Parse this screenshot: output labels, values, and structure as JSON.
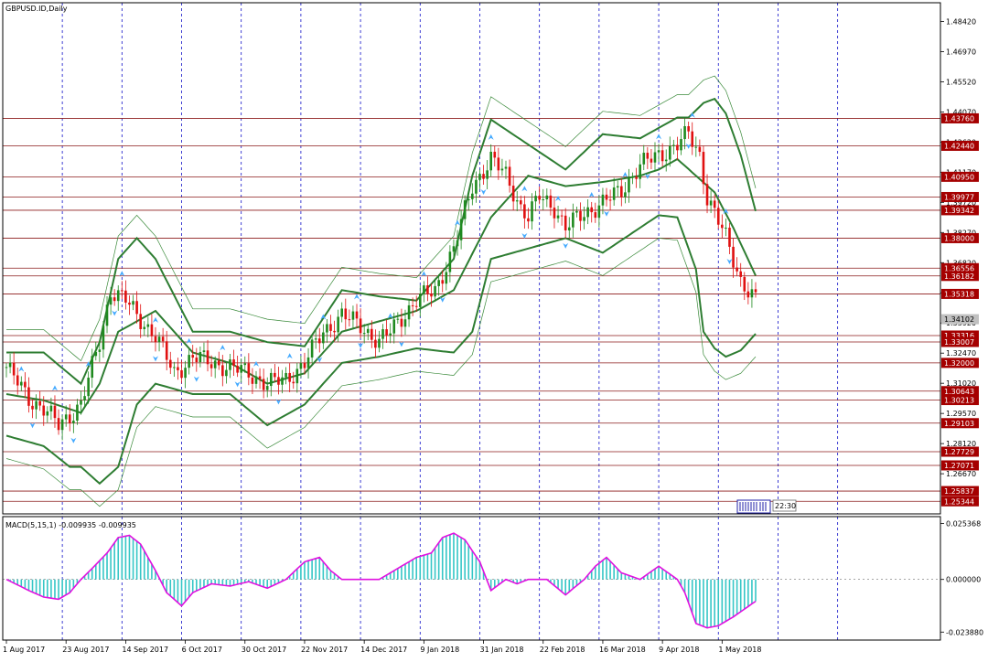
{
  "window": {
    "symbol_label": "GBPUSD.ID,Daily",
    "macd_label": "MACD(5,15,1) -0.009935 -0.009935",
    "clock": "22:30"
  },
  "colors": {
    "frame": "#000000",
    "vgrid": "#1010c8",
    "level_line": "#8b1a1a",
    "level_tag_bg": "#a50000",
    "level_tag_text": "#ffffff",
    "up_candle": "#1f8a1f",
    "down_candle": "#e01010",
    "band_main": "#2e7d32",
    "band_outer": "#3a8a3a",
    "fractal": "#44aaff",
    "macd_hist": "#35c6c6",
    "macd_signal": "#e010e0",
    "zero_line": "#707070"
  },
  "chart_data": [
    {
      "type": "line",
      "title": "GBPUSD.ID,Daily",
      "x_labels": [
        "1 Aug 2017",
        "23 Aug 2017",
        "14 Sep 2017",
        "6 Oct 2017",
        "30 Oct 2017",
        "22 Nov 2017",
        "14 Dec 2017",
        "9 Jan 2018",
        "31 Jan 2018",
        "22 Feb 2018",
        "16 Mar 2018",
        "9 Apr 2018",
        "1 May 2018"
      ],
      "y_ticks": [
        "1.48420",
        "1.46970",
        "1.45520",
        "1.44070",
        "1.42620",
        "1.41170",
        "1.39720",
        "1.38270",
        "1.36820",
        "1.35370",
        "1.33920",
        "1.32470",
        "1.31020",
        "1.29570",
        "1.28120",
        "1.26670"
      ],
      "ylim": [
        1.2474,
        1.4932
      ],
      "levels": [
        "1.43760",
        "1.42440",
        "1.40950",
        "1.39977",
        "1.39342",
        "1.38000",
        "1.36556",
        "1.36182",
        "1.35318",
        "1.33316",
        "1.33007",
        "1.32000",
        "1.30643",
        "1.30213",
        "1.29103",
        "1.27729",
        "1.27071",
        "1.25837",
        "1.25344"
      ],
      "current_price": "1.34102",
      "close_trajectory": {
        "x": [
          0,
          6,
          10,
          14,
          17,
          20,
          25,
          28,
          32,
          35,
          40,
          45,
          50,
          55,
          60,
          65,
          70,
          75,
          80,
          85,
          90,
          95,
          100,
          103,
          106,
          110,
          115,
          120,
          125,
          130,
          134,
          138,
          140,
          143,
          147,
          150,
          155,
          160,
          165,
          170,
          175,
          180,
          183,
          186,
          188,
          193,
          197,
          199,
          201
        ],
        "y": [
          1.318,
          1.303,
          1.298,
          1.29,
          1.295,
          1.3,
          1.33,
          1.355,
          1.35,
          1.343,
          1.333,
          1.315,
          1.323,
          1.32,
          1.318,
          1.315,
          1.31,
          1.312,
          1.32,
          1.335,
          1.343,
          1.338,
          1.33,
          1.335,
          1.342,
          1.35,
          1.355,
          1.375,
          1.405,
          1.418,
          1.41,
          1.395,
          1.39,
          1.4,
          1.395,
          1.385,
          1.392,
          1.397,
          1.403,
          1.415,
          1.42,
          1.425,
          1.43,
          1.42,
          1.4,
          1.38,
          1.36,
          1.355,
          1.35
        ]
      },
      "bollinger_middle": {
        "x": [
          0,
          10,
          20,
          25,
          30,
          40,
          50,
          60,
          70,
          80,
          90,
          100,
          110,
          120,
          130,
          140,
          150,
          160,
          170,
          175,
          180,
          185,
          190,
          195,
          201
        ],
        "y": [
          1.305,
          1.302,
          1.296,
          1.31,
          1.335,
          1.345,
          1.325,
          1.32,
          1.31,
          1.315,
          1.335,
          1.34,
          1.345,
          1.355,
          1.39,
          1.41,
          1.405,
          1.407,
          1.41,
          1.413,
          1.418,
          1.41,
          1.402,
          1.385,
          1.362
        ]
      },
      "bollinger_upper": {
        "x": [
          0,
          10,
          20,
          25,
          30,
          35,
          40,
          50,
          60,
          70,
          80,
          90,
          100,
          110,
          120,
          125,
          130,
          140,
          150,
          160,
          170,
          180,
          183,
          187,
          190,
          193,
          197,
          201
        ],
        "y": [
          1.325,
          1.325,
          1.31,
          1.33,
          1.37,
          1.38,
          1.37,
          1.335,
          1.335,
          1.33,
          1.328,
          1.355,
          1.352,
          1.35,
          1.37,
          1.41,
          1.437,
          1.425,
          1.413,
          1.43,
          1.428,
          1.438,
          1.438,
          1.445,
          1.447,
          1.44,
          1.42,
          1.393
        ]
      },
      "bollinger_lower": {
        "x": [
          0,
          10,
          17,
          20,
          25,
          30,
          35,
          40,
          50,
          60,
          70,
          80,
          90,
          100,
          110,
          120,
          125,
          130,
          140,
          150,
          160,
          170,
          175,
          180,
          185,
          187,
          190,
          193,
          197,
          201
        ],
        "y": [
          1.285,
          1.28,
          1.27,
          1.27,
          1.262,
          1.27,
          1.3,
          1.31,
          1.305,
          1.305,
          1.29,
          1.3,
          1.32,
          1.323,
          1.327,
          1.325,
          1.335,
          1.37,
          1.375,
          1.38,
          1.373,
          1.385,
          1.391,
          1.39,
          1.365,
          1.335,
          1.327,
          1.323,
          1.326,
          1.334
        ]
      }
    },
    {
      "type": "bar",
      "title": "MACD(5,15,1) -0.009935 -0.009935",
      "y_ticks": [
        "0.025368",
        "0.000000",
        "-0.023880"
      ],
      "ylim": [
        -0.0275,
        0.0285
      ],
      "macd": {
        "x": [
          0,
          6,
          10,
          14,
          17,
          20,
          23,
          27,
          30,
          33,
          36,
          40,
          43,
          47,
          50,
          55,
          60,
          65,
          70,
          75,
          80,
          84,
          87,
          90,
          95,
          100,
          105,
          110,
          114,
          117,
          120,
          123,
          127,
          130,
          134,
          137,
          140,
          145,
          150,
          155,
          158,
          161,
          165,
          170,
          175,
          180,
          182,
          185,
          188,
          191,
          195,
          201
        ],
        "y": [
          0.0,
          -0.005,
          -0.008,
          -0.009,
          -0.006,
          0.0,
          0.005,
          0.012,
          0.019,
          0.02,
          0.016,
          0.004,
          -0.006,
          -0.012,
          -0.006,
          -0.002,
          -0.003,
          -0.001,
          -0.004,
          0.0,
          0.008,
          0.01,
          0.004,
          0.0,
          0.0,
          0.0,
          0.005,
          0.01,
          0.012,
          0.019,
          0.021,
          0.018,
          0.008,
          -0.005,
          0.0,
          -0.002,
          0.0,
          0.0,
          -0.007,
          0.0,
          0.006,
          0.01,
          0.003,
          0.0,
          0.006,
          0.0,
          -0.006,
          -0.02,
          -0.022,
          -0.021,
          -0.017,
          -0.0099
        ]
      }
    }
  ]
}
